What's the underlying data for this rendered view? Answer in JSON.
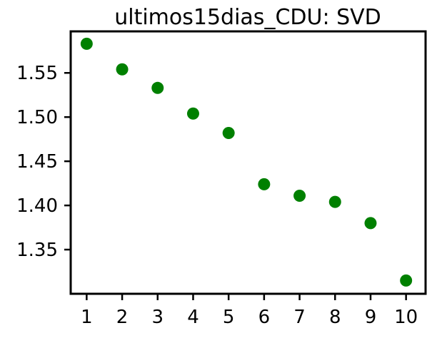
{
  "chart_data": {
    "type": "scatter",
    "title": "ultimos15dias_CDU: SVD",
    "xlabel": "",
    "ylabel": "",
    "x": [
      1,
      2,
      3,
      4,
      5,
      6,
      7,
      8,
      9,
      10
    ],
    "y": [
      1.583,
      1.554,
      1.533,
      1.504,
      1.482,
      1.424,
      1.411,
      1.404,
      1.38,
      1.315
    ],
    "xlim": [
      0.55,
      10.55
    ],
    "ylim": [
      1.3,
      1.597
    ],
    "xticks": [
      1,
      2,
      3,
      4,
      5,
      6,
      7,
      8,
      9,
      10
    ],
    "xtick_labels": [
      "1",
      "2",
      "3",
      "4",
      "5",
      "6",
      "7",
      "8",
      "9",
      "10"
    ],
    "yticks": [
      1.35,
      1.4,
      1.45,
      1.5,
      1.55
    ],
    "ytick_labels": [
      "1.35",
      "1.40",
      "1.45",
      "1.50",
      "1.55"
    ],
    "grid": false,
    "legend": "none",
    "colors": {
      "marker": "#008000",
      "axes": "#000000"
    }
  }
}
